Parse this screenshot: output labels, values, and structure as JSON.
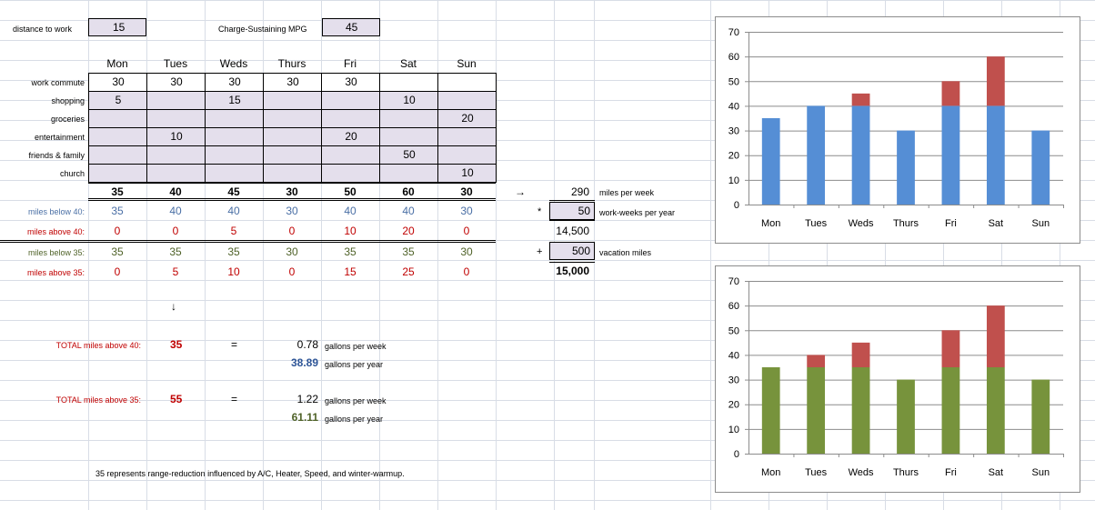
{
  "params": {
    "distance_label": "distance to work",
    "distance_value": "15",
    "mpg_label": "Charge-Sustaining MPG",
    "mpg_value": "45"
  },
  "days": [
    "Mon",
    "Tues",
    "Weds",
    "Thurs",
    "Fri",
    "Sat",
    "Sun"
  ],
  "rows": [
    {
      "label": "work commute",
      "values": [
        "30",
        "30",
        "30",
        "30",
        "30",
        "",
        ""
      ]
    },
    {
      "label": "shopping",
      "values": [
        "5",
        "",
        "15",
        "",
        "",
        "10",
        ""
      ]
    },
    {
      "label": "groceries",
      "values": [
        "",
        "",
        "",
        "",
        "",
        "",
        "20"
      ]
    },
    {
      "label": "entertainment",
      "values": [
        "",
        "10",
        "",
        "",
        "20",
        "",
        ""
      ]
    },
    {
      "label": "friends & family",
      "values": [
        "",
        "",
        "",
        "",
        "",
        "50",
        ""
      ]
    },
    {
      "label": "church",
      "values": [
        "",
        "",
        "",
        "",
        "",
        "",
        "10"
      ]
    }
  ],
  "totals": [
    "35",
    "40",
    "45",
    "30",
    "50",
    "60",
    "30"
  ],
  "below40": {
    "label": "miles below 40:",
    "values": [
      "35",
      "40",
      "40",
      "30",
      "40",
      "40",
      "30"
    ]
  },
  "above40": {
    "label": "miles above 40:",
    "values": [
      "0",
      "0",
      "5",
      "0",
      "10",
      "20",
      "0"
    ]
  },
  "below35": {
    "label": "miles below 35:",
    "values": [
      "35",
      "35",
      "35",
      "30",
      "35",
      "35",
      "30"
    ]
  },
  "above35": {
    "label": "miles above 35:",
    "values": [
      "0",
      "5",
      "10",
      "0",
      "15",
      "25",
      "0"
    ]
  },
  "summary": {
    "arrow_right": "→",
    "miles_per_week": "290",
    "miles_per_week_label": "miles per week",
    "times_sign": "*",
    "work_weeks": "50",
    "work_weeks_label": "work-weeks per year",
    "subtotal": "14,500",
    "plus_sign": "+",
    "vacation": "500",
    "vacation_label": "vacation miles",
    "total": "15,000"
  },
  "down_arrow": "↓",
  "total40": {
    "label": "TOTAL miles above 40:",
    "value": "35",
    "equals": "=",
    "gal_week": "0.78",
    "gal_week_label": "gallons per week",
    "gal_year": "38.89",
    "gal_year_label": "gallons per year"
  },
  "total35": {
    "label": "TOTAL miles above 35:",
    "value": "55",
    "equals": "=",
    "gal_week": "1.22",
    "gal_week_label": "gallons per week",
    "gal_year": "61.11",
    "gal_year_label": "gallons per year"
  },
  "note": "35  represents range-reduction influenced by A/C, Heater, Speed, and winter-warmup.",
  "colors": {
    "blue": "#558ed5",
    "red": "#c0504d",
    "green": "#77933c"
  },
  "chart_data": [
    {
      "type": "bar",
      "stacked": true,
      "categories": [
        "Mon",
        "Tues",
        "Weds",
        "Thurs",
        "Fri",
        "Sat",
        "Sun"
      ],
      "series": [
        {
          "values": [
            35,
            40,
            40,
            30,
            40,
            40,
            30
          ],
          "color": "#558ed5"
        },
        {
          "values": [
            0,
            0,
            5,
            0,
            10,
            20,
            0
          ],
          "color": "#c0504d"
        }
      ],
      "ylim": [
        0,
        70
      ],
      "yticks": [
        "0",
        "10",
        "20",
        "30",
        "40",
        "50",
        "60",
        "70"
      ],
      "grid": true,
      "legend": "none"
    },
    {
      "type": "bar",
      "stacked": true,
      "categories": [
        "Mon",
        "Tues",
        "Weds",
        "Thurs",
        "Fri",
        "Sat",
        "Sun"
      ],
      "series": [
        {
          "values": [
            35,
            35,
            35,
            30,
            35,
            35,
            30
          ],
          "color": "#77933c"
        },
        {
          "values": [
            0,
            5,
            10,
            0,
            15,
            25,
            0
          ],
          "color": "#c0504d"
        }
      ],
      "ylim": [
        0,
        70
      ],
      "yticks": [
        "0",
        "10",
        "20",
        "30",
        "40",
        "50",
        "60",
        "70"
      ],
      "grid": true,
      "legend": "none"
    }
  ]
}
